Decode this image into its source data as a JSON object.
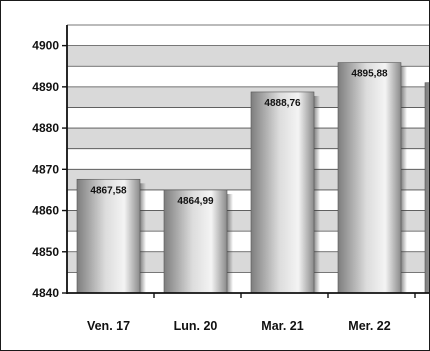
{
  "chart_data": {
    "type": "bar",
    "categories": [
      "Ven. 17",
      "Lun. 20",
      "Mar. 21",
      "Mer. 22",
      ""
    ],
    "values": [
      4867.58,
      4864.99,
      4888.76,
      4895.88,
      4891
    ],
    "labels": [
      "4867,58",
      "4864,99",
      "4888,76",
      "4895,88",
      ""
    ],
    "title": "",
    "xlabel": "",
    "ylabel": "",
    "ylim": [
      4840,
      4905
    ],
    "yticks": [
      4840,
      4850,
      4860,
      4870,
      4880,
      4890,
      4900
    ],
    "ytick_labels": [
      "4840",
      "4850",
      "4860",
      "4870",
      "4880",
      "4890",
      "4900"
    ],
    "band_step": 5,
    "grid": true,
    "legend": "none",
    "colors": {
      "band_light": "#d9d9d9",
      "band_white": "#ffffff",
      "bar_dark": "#7e7e7e",
      "bar_light": "#f4f4f4",
      "axis": "#111111"
    }
  }
}
